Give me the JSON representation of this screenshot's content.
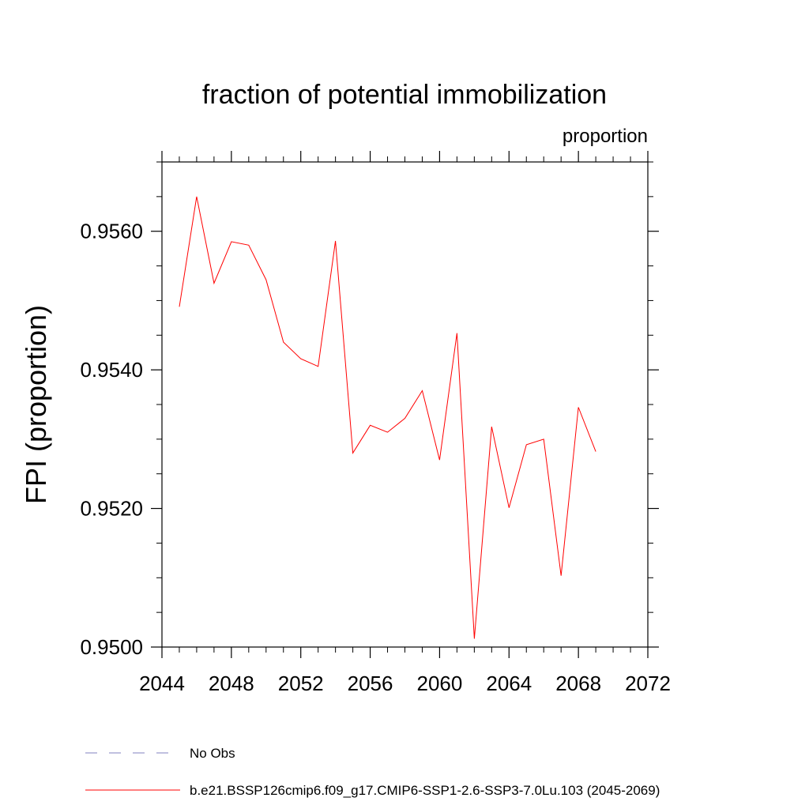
{
  "chart_data": {
    "type": "line",
    "title": "fraction of potential immobilization",
    "subtitle_right": "proportion",
    "ylabel": "FPI  (proportion)",
    "xlabel": "",
    "xlim": [
      2044,
      2072
    ],
    "ylim": [
      0.95,
      0.957
    ],
    "xticks": [
      2044,
      2048,
      2052,
      2056,
      2060,
      2064,
      2068,
      2072
    ],
    "xtick_labels": [
      "2044",
      "2048",
      "2052",
      "2056",
      "2060",
      "2064",
      "2068",
      "2072"
    ],
    "yticks": [
      0.95,
      0.952,
      0.954,
      0.956
    ],
    "ytick_labels": [
      "0.9500",
      "0.9520",
      "0.9540",
      "0.9560"
    ],
    "grid": false,
    "series": [
      {
        "name": "b.e21.BSSP126cmip6.f09_g17.CMIP6-SSP1-2.6-SSP3-7.0Lu.103 (2045-2069)",
        "color": "#ff0000",
        "style": "solid",
        "x": [
          2045,
          2046,
          2047,
          2048,
          2049,
          2050,
          2051,
          2052,
          2053,
          2054,
          2055,
          2056,
          2057,
          2058,
          2059,
          2060,
          2061,
          2062,
          2063,
          2064,
          2065,
          2066,
          2067,
          2068,
          2069
        ],
        "values": [
          0.95491,
          0.9565,
          0.95525,
          0.95585,
          0.9558,
          0.9553,
          0.9544,
          0.95416,
          0.95405,
          0.95586,
          0.9528,
          0.9532,
          0.9531,
          0.9533,
          0.9537,
          0.9527,
          0.95453,
          0.95012,
          0.95318,
          0.95201,
          0.95292,
          0.953,
          0.95103,
          0.95346,
          0.95282
        ]
      }
    ],
    "legend": [
      {
        "label": "No Obs",
        "color": "#8080c0",
        "style": "dashed"
      },
      {
        "label": "b.e21.BSSP126cmip6.f09_g17.CMIP6-SSP1-2.6-SSP3-7.0Lu.103 (2045-2069)",
        "color": "#ff0000",
        "style": "solid"
      }
    ],
    "legend_position": "bottom"
  }
}
